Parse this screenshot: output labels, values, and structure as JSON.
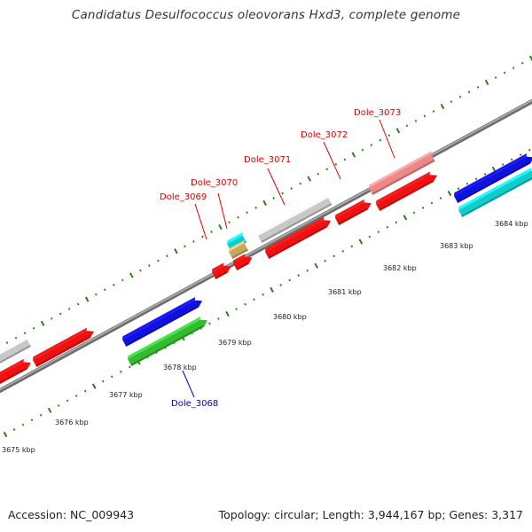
{
  "title": "Candidatus Desulfococcus oleovorans Hxd3, complete genome",
  "footer": {
    "accession": "Accession: NC_009943",
    "summary": "Topology: circular; Length: 3,944,167 bp; Genes: 3,317"
  },
  "axis": {
    "unit": "kbp",
    "tick_labels": [
      "3675 kbp",
      "3676 kbp",
      "3677 kbp",
      "3678 kbp",
      "3679 kbp",
      "3680 kbp",
      "3681 kbp",
      "3682 kbp",
      "3683 kbp",
      "3684 kbp"
    ]
  },
  "gene_labels": [
    {
      "text": "Dole_3068",
      "color": "#0000cc"
    },
    {
      "text": "Dole_3069",
      "color": "#dd0000"
    },
    {
      "text": "Dole_3070",
      "color": "#dd0000"
    },
    {
      "text": "Dole_3071",
      "color": "#dd0000"
    },
    {
      "text": "Dole_3072",
      "color": "#dd0000"
    },
    {
      "text": "Dole_3073",
      "color": "#dd0000"
    }
  ],
  "colors": {
    "backbone": "#8a8a8a",
    "tick": "#2e7d1a",
    "gene_red": "#ee1111",
    "gene_blue": "#1111dd",
    "gene_green": "#33bb33",
    "gene_cyan": "#11cccc",
    "gene_grey": "#c8c8c8",
    "gene_pink": "#ee8888",
    "gene_tan": "#c8a860"
  }
}
